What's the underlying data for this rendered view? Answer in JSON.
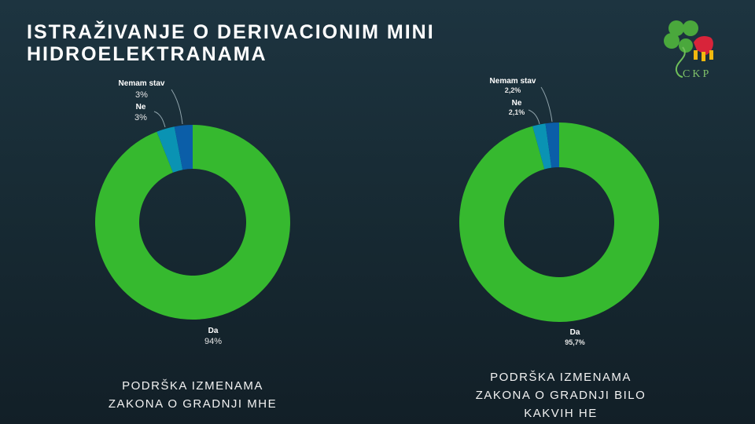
{
  "title_lines": [
    "ISTRAŽIVANJE O DERIVACIONIM MINI",
    "HIDROELEKTRANAMA"
  ],
  "logo_text": "CKP",
  "chart_data": [
    {
      "type": "pie",
      "donut": true,
      "caption_lines": [
        "PODRŠKA IZMENAMA",
        "ZAKONA O GRADNJI MHE"
      ],
      "slices": [
        {
          "label": "Da",
          "value": 94,
          "display": "94%",
          "color": "#36b92f"
        },
        {
          "label": "Ne",
          "value": 3,
          "display": "3%",
          "color": "#0a93b3"
        },
        {
          "label": "Nemam stav",
          "value": 3,
          "display": "3%",
          "color": "#0b5ea8"
        }
      ]
    },
    {
      "type": "pie",
      "donut": true,
      "caption_lines": [
        "PODRŠKA IZMENAMA",
        "ZAKONA O GRADNJI BILO",
        "KAKVIH HE"
      ],
      "slices": [
        {
          "label": "Da",
          "value": 95.7,
          "display": "95,7%",
          "color": "#36b92f"
        },
        {
          "label": "Ne",
          "value": 2.1,
          "display": "2,1%",
          "color": "#0a93b3"
        },
        {
          "label": "Nemam stav",
          "value": 2.2,
          "display": "2,2%",
          "color": "#0b5ea8"
        }
      ]
    }
  ]
}
